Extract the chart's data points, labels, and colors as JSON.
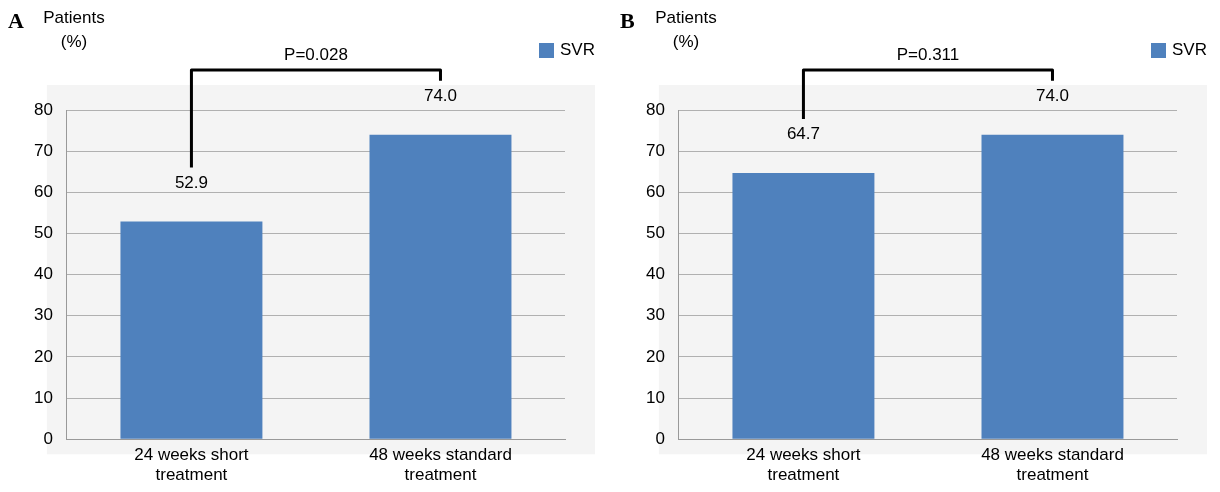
{
  "chart_data": [
    {
      "type": "bar",
      "title": "A",
      "ylabel": "Patients (%)",
      "categories": [
        "24 weeks short treatment",
        "48 weeks standard treatment"
      ],
      "series": [
        {
          "name": "SVR",
          "color": "#4f81bd",
          "values": [
            52.9,
            74.0
          ],
          "value_labels": [
            "52.9",
            "74.0"
          ]
        }
      ],
      "ylim": [
        0,
        80
      ],
      "yticks": [
        0,
        10,
        20,
        30,
        40,
        50,
        60,
        70,
        80
      ],
      "grid": "y",
      "legend": "top right",
      "annotations": [
        "P=0.028"
      ]
    },
    {
      "type": "bar",
      "title": "B",
      "ylabel": "Patients (%)",
      "categories": [
        "24 weeks short treatment",
        "48 weeks standard treatment"
      ],
      "series": [
        {
          "name": "SVR",
          "color": "#4f81bd",
          "values": [
            64.7,
            74.0
          ],
          "value_labels": [
            "64.7",
            "74.0"
          ]
        }
      ],
      "ylim": [
        0,
        80
      ],
      "yticks": [
        0,
        10,
        20,
        30,
        40,
        50,
        60,
        70,
        80
      ],
      "grid": "y",
      "legend": "top right",
      "annotations": [
        "P=0.311"
      ]
    }
  ]
}
